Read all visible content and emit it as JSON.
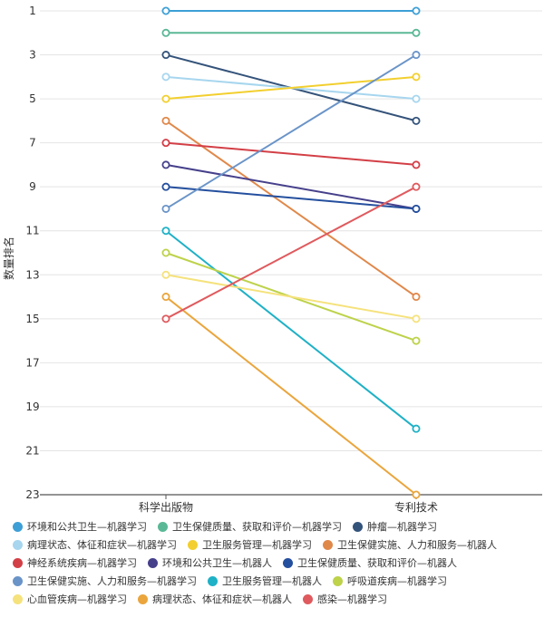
{
  "chart_data": {
    "type": "line",
    "ylabel": "数量排名",
    "categories": [
      "科学出版物",
      "专利技术"
    ],
    "y_ticks": [
      1,
      3,
      5,
      7,
      9,
      11,
      13,
      15,
      17,
      19,
      21,
      23
    ],
    "ylim": [
      1,
      23
    ],
    "y_inverted": true,
    "grid": true,
    "legend_position": "bottom",
    "series": [
      {
        "name": "环境和公共卫生—机器学习",
        "color": "#3d9fd6",
        "values": [
          1,
          1
        ]
      },
      {
        "name": "卫生保健质量、获取和评价—机器学习",
        "color": "#5ab896",
        "values": [
          2,
          2
        ]
      },
      {
        "name": "肿瘤—机器学习",
        "color": "#34537a",
        "values": [
          3,
          6
        ]
      },
      {
        "name": "病理状态、体征和症状—机器学习",
        "color": "#a7d6ee",
        "values": [
          4,
          5
        ]
      },
      {
        "name": "卫生服务管理—机器学习",
        "color": "#f2cf2e",
        "values": [
          5,
          4
        ]
      },
      {
        "name": "卫生保健实施、人力和服务—机器人",
        "color": "#e0884a",
        "values": [
          6,
          14
        ]
      },
      {
        "name": "神经系统疾病—机器学习",
        "color": "#d33f46",
        "values": [
          7,
          8
        ]
      },
      {
        "name": "环境和公共卫生—机器人",
        "color": "#46408b",
        "values": [
          8,
          10
        ]
      },
      {
        "name": "卫生保健质量、获取和评价—机器人",
        "color": "#244f9e",
        "values": [
          9,
          10
        ]
      },
      {
        "name": "卫生保健实施、人力和服务—机器学习",
        "color": "#6a94c8",
        "values": [
          10,
          3
        ]
      },
      {
        "name": "卫生服务管理—机器人",
        "color": "#1fb1c6",
        "values": [
          11,
          20
        ]
      },
      {
        "name": "呼吸道疾病—机器学习",
        "color": "#bed24a",
        "values": [
          12,
          16
        ]
      },
      {
        "name": "心血管疾病—机器学习",
        "color": "#f5e27c",
        "values": [
          13,
          15
        ]
      },
      {
        "name": "病理状态、体征和症状—机器人",
        "color": "#eaa53c",
        "values": [
          14,
          23
        ]
      },
      {
        "name": "感染—机器学习",
        "color": "#df5a5e",
        "values": [
          15,
          9
        ]
      }
    ]
  }
}
